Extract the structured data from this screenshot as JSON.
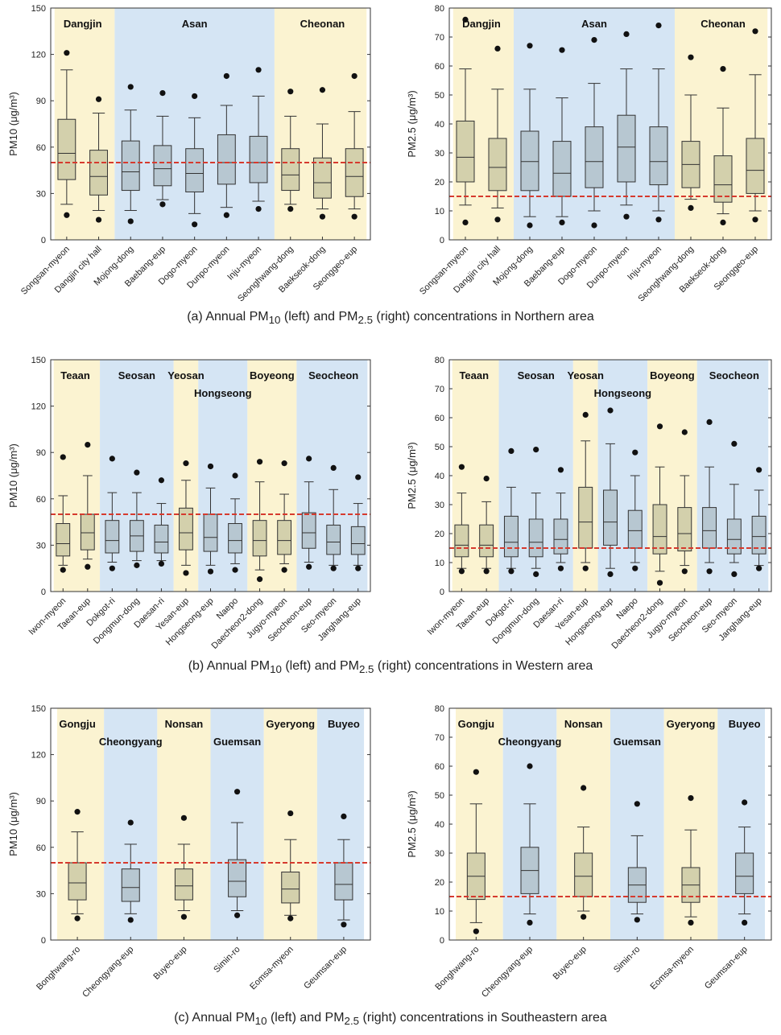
{
  "colors": {
    "yellow": "#fbf3d1",
    "blue": "#d5e5f4",
    "yellow_box": "#d3d0ac",
    "blue_box": "#b7c7d1",
    "line": "#d63a2e"
  },
  "captions": [
    {
      "prefix": "(a) Annual PM",
      "s1": "10",
      "mid": " (left) and PM",
      "s2": "2.5",
      "suffix": " (right) concentrations in Northern area"
    },
    {
      "prefix": "(b) Annual PM",
      "s1": "10",
      "mid": " (left) and PM",
      "s2": "2.5",
      "suffix": " (right) concentrations in Western area"
    },
    {
      "prefix": "(c) Annual PM",
      "s1": "10",
      "mid": " (left) and PM",
      "s2": "2.5",
      "suffix": " (right) concentrations in Southeastern area"
    }
  ],
  "chart_data": [
    {
      "type": "box",
      "pollutant": "PM10",
      "ylabel": "PM10 (μg/m³)",
      "ylim": [
        0,
        150
      ],
      "yticks": [
        0,
        30,
        60,
        90,
        120,
        150
      ],
      "standard_line": 50,
      "regions": [
        {
          "name": "Dangjin",
          "color": "yellow",
          "from": 0,
          "to": 1
        },
        {
          "name": "Asan",
          "color": "blue",
          "from": 2,
          "to": 6
        },
        {
          "name": "Cheonan",
          "color": "yellow",
          "from": 7,
          "to": 9
        }
      ],
      "categories": [
        "Songsan-myeon",
        "Dangjin city hall",
        "Mojong-dong",
        "Baebang-eup",
        "Dogo-myeon",
        "Dunpo-myeon",
        "Inju-myeon",
        "Seonghwang-dong",
        "Baekseok-dong",
        "Seonggeo-eup"
      ],
      "boxes": [
        {
          "min": 23,
          "q1": 39,
          "med": 56,
          "q3": 78,
          "max": 110,
          "out": [
            121,
            16
          ]
        },
        {
          "min": 19,
          "q1": 29,
          "med": 41,
          "q3": 58,
          "max": 82,
          "out": [
            91,
            13
          ]
        },
        {
          "min": 19,
          "q1": 32,
          "med": 44,
          "q3": 64,
          "max": 84,
          "out": [
            99,
            12
          ]
        },
        {
          "min": 26,
          "q1": 35,
          "med": 46,
          "q3": 61,
          "max": 80,
          "out": [
            95,
            23
          ]
        },
        {
          "min": 17,
          "q1": 31,
          "med": 43,
          "q3": 59,
          "max": 79,
          "out": [
            93,
            10
          ]
        },
        {
          "min": 21,
          "q1": 36,
          "med": 50,
          "q3": 68,
          "max": 87,
          "out": [
            106,
            16
          ]
        },
        {
          "min": 25,
          "q1": 37,
          "med": 50,
          "q3": 67,
          "max": 93,
          "out": [
            110,
            20
          ]
        },
        {
          "min": 23,
          "q1": 32,
          "med": 42,
          "q3": 59,
          "max": 80,
          "out": [
            96,
            20
          ]
        },
        {
          "min": 20,
          "q1": 27,
          "med": 37,
          "q3": 53,
          "max": 75,
          "out": [
            97,
            15
          ]
        },
        {
          "min": 20,
          "q1": 28,
          "med": 41,
          "q3": 59,
          "max": 83,
          "out": [
            106,
            15
          ]
        }
      ]
    },
    {
      "type": "box",
      "pollutant": "PM2.5",
      "ylabel": "PM2.5 (μg/m³)",
      "ylim": [
        0,
        80
      ],
      "yticks": [
        0,
        10,
        20,
        30,
        40,
        50,
        60,
        70,
        80
      ],
      "standard_line": 15,
      "regions": [
        {
          "name": "Dangjin",
          "color": "yellow",
          "from": 0,
          "to": 1
        },
        {
          "name": "Asan",
          "color": "blue",
          "from": 2,
          "to": 6
        },
        {
          "name": "Cheonan",
          "color": "yellow",
          "from": 7,
          "to": 9
        }
      ],
      "categories": [
        "Songsan-myeon",
        "Dangjin city hall",
        "Mojong-dong",
        "Baebang-eup",
        "Dogo-myeon",
        "Dunpo-myeon",
        "Inju-myeon",
        "Seonghwang-dong",
        "Baekseok-dong",
        "Seonggeo-eup"
      ],
      "boxes": [
        {
          "min": 12,
          "q1": 20,
          "med": 28.5,
          "q3": 41,
          "max": 59,
          "out": [
            76,
            6
          ]
        },
        {
          "min": 11,
          "q1": 17,
          "med": 25,
          "q3": 35,
          "max": 52,
          "out": [
            66,
            7
          ]
        },
        {
          "min": 8,
          "q1": 17,
          "med": 27,
          "q3": 37.5,
          "max": 52,
          "out": [
            67,
            5
          ]
        },
        {
          "min": 8,
          "q1": 15,
          "med": 23,
          "q3": 34,
          "max": 49,
          "out": [
            65.5,
            6
          ]
        },
        {
          "min": 10,
          "q1": 18,
          "med": 27,
          "q3": 39,
          "max": 54,
          "out": [
            69,
            5
          ]
        },
        {
          "min": 12,
          "q1": 20,
          "med": 32,
          "q3": 43,
          "max": 59,
          "out": [
            71,
            8
          ]
        },
        {
          "min": 10,
          "q1": 19,
          "med": 27,
          "q3": 39,
          "max": 59,
          "out": [
            74,
            7
          ]
        },
        {
          "min": 14,
          "q1": 18,
          "med": 26,
          "q3": 34,
          "max": 50,
          "out": [
            63,
            11
          ]
        },
        {
          "min": 9,
          "q1": 13,
          "med": 19,
          "q3": 29,
          "max": 45.5,
          "out": [
            59,
            6
          ]
        },
        {
          "min": 10,
          "q1": 16,
          "med": 24,
          "q3": 35,
          "max": 57,
          "out": [
            72,
            7
          ]
        }
      ]
    },
    {
      "type": "box",
      "pollutant": "PM10",
      "ylabel": "PM10 (μg/m³)",
      "ylim": [
        0,
        150
      ],
      "yticks": [
        0,
        30,
        60,
        90,
        120,
        150
      ],
      "standard_line": 50,
      "regions": [
        {
          "name": "Teaan",
          "color": "yellow",
          "from": 0,
          "to": 1
        },
        {
          "name": "Seosan",
          "color": "blue",
          "from": 2,
          "to": 4
        },
        {
          "name": "Yeosan",
          "color": "yellow",
          "from": 5,
          "to": 5
        },
        {
          "name": "Hongseong",
          "color": "blue",
          "from": 6,
          "to": 7,
          "low": true
        },
        {
          "name": "Boyeong",
          "color": "yellow",
          "from": 8,
          "to": 9
        },
        {
          "name": "Seocheon",
          "color": "blue",
          "from": 10,
          "to": 12
        }
      ],
      "categories": [
        "Iwon-myeon",
        "Taean-eup",
        "Dokgot-ri",
        "Dongmun-dong",
        "Daesan-ri",
        "Yesan-eup",
        "Hongseong-eup",
        "Naepo",
        "Daecheon2-dong",
        "Jugyo-myeon",
        "Seocheon-eup",
        "Seo-myeon",
        "Janghang-eup"
      ],
      "boxes": [
        {
          "min": 17,
          "q1": 23,
          "med": 31,
          "q3": 44,
          "max": 62,
          "out": [
            87,
            14
          ]
        },
        {
          "min": 21,
          "q1": 27,
          "med": 38,
          "q3": 50,
          "max": 75,
          "out": [
            95,
            16
          ]
        },
        {
          "min": 19,
          "q1": 25,
          "med": 33,
          "q3": 46,
          "max": 64,
          "out": [
            86,
            15
          ]
        },
        {
          "min": 20,
          "q1": 26,
          "med": 36,
          "q3": 46,
          "max": 64,
          "out": [
            77,
            17
          ]
        },
        {
          "min": 20,
          "q1": 25,
          "med": 32,
          "q3": 43,
          "max": 57,
          "out": [
            72,
            18
          ]
        },
        {
          "min": 17,
          "q1": 27,
          "med": 38,
          "q3": 54,
          "max": 72,
          "out": [
            83,
            12
          ]
        },
        {
          "min": 17,
          "q1": 26,
          "med": 35,
          "q3": 50,
          "max": 67,
          "out": [
            81,
            13
          ]
        },
        {
          "min": 18,
          "q1": 25,
          "med": 33,
          "q3": 44,
          "max": 60,
          "out": [
            75,
            14
          ]
        },
        {
          "min": 14,
          "q1": 23,
          "med": 33,
          "q3": 46,
          "max": 71,
          "out": [
            84,
            8
          ]
        },
        {
          "min": 18,
          "q1": 24,
          "med": 33,
          "q3": 46,
          "max": 63,
          "out": [
            83,
            14
          ]
        },
        {
          "min": 19,
          "q1": 28,
          "med": 38,
          "q3": 51,
          "max": 71,
          "out": [
            86,
            16
          ]
        },
        {
          "min": 17,
          "q1": 24,
          "med": 32,
          "q3": 43,
          "max": 66,
          "out": [
            80,
            15
          ]
        },
        {
          "min": 17,
          "q1": 24,
          "med": 31,
          "q3": 42,
          "max": 57,
          "out": [
            74,
            15
          ]
        }
      ]
    },
    {
      "type": "box",
      "pollutant": "PM2.5",
      "ylabel": "PM2.5 (μg/m³)",
      "ylim": [
        0,
        80
      ],
      "yticks": [
        0,
        10,
        20,
        30,
        40,
        50,
        60,
        70,
        80
      ],
      "standard_line": 15,
      "regions": [
        {
          "name": "Teaan",
          "color": "yellow",
          "from": 0,
          "to": 1
        },
        {
          "name": "Seosan",
          "color": "blue",
          "from": 2,
          "to": 4
        },
        {
          "name": "Yeosan",
          "color": "yellow",
          "from": 5,
          "to": 5
        },
        {
          "name": "Hongseong",
          "color": "blue",
          "from": 6,
          "to": 7,
          "low": true
        },
        {
          "name": "Boyeong",
          "color": "yellow",
          "from": 8,
          "to": 9
        },
        {
          "name": "Seocheon",
          "color": "blue",
          "from": 10,
          "to": 12
        }
      ],
      "categories": [
        "Iwon-myeon",
        "Taean-eup",
        "Dokgot-ri",
        "Dongmun-dong",
        "Daesan-ri",
        "Yesan-eup",
        "Hongseong-eup",
        "Naepo",
        "Daecheon2-dong",
        "Jugyo-myeon",
        "Seocheon-eup",
        "Seo-myeon",
        "Janghang-eup"
      ],
      "boxes": [
        {
          "min": 8,
          "q1": 12,
          "med": 16,
          "q3": 23,
          "max": 34,
          "out": [
            43,
            7
          ]
        },
        {
          "min": 8,
          "q1": 12,
          "med": 16,
          "q3": 23,
          "max": 31,
          "out": [
            39,
            7
          ]
        },
        {
          "min": 8,
          "q1": 12,
          "med": 17,
          "q3": 26,
          "max": 36,
          "out": [
            48.5,
            7
          ]
        },
        {
          "min": 8,
          "q1": 12,
          "med": 17,
          "q3": 25,
          "max": 34,
          "out": [
            49,
            6
          ]
        },
        {
          "min": 10,
          "q1": 13,
          "med": 18,
          "q3": 25,
          "max": 34,
          "out": [
            42,
            8
          ]
        },
        {
          "min": 10,
          "q1": 15,
          "med": 24,
          "q3": 36,
          "max": 52,
          "out": [
            61,
            8
          ]
        },
        {
          "min": 8,
          "q1": 16,
          "med": 24,
          "q3": 35,
          "max": 51,
          "out": [
            62.5,
            6
          ]
        },
        {
          "min": 10,
          "q1": 15,
          "med": 21,
          "q3": 28,
          "max": 40,
          "out": [
            48,
            8
          ]
        },
        {
          "min": 7,
          "q1": 13,
          "med": 19,
          "q3": 30,
          "max": 43,
          "out": [
            57,
            3
          ]
        },
        {
          "min": 9,
          "q1": 14,
          "med": 20,
          "q3": 29,
          "max": 40,
          "out": [
            55,
            7
          ]
        },
        {
          "min": 10,
          "q1": 15,
          "med": 21,
          "q3": 29,
          "max": 43,
          "out": [
            58.5,
            7
          ]
        },
        {
          "min": 10,
          "q1": 13,
          "med": 18,
          "q3": 25,
          "max": 37,
          "out": [
            51,
            6
          ]
        },
        {
          "min": 9,
          "q1": 13,
          "med": 19,
          "q3": 26,
          "max": 35,
          "out": [
            42,
            8
          ]
        }
      ]
    },
    {
      "type": "box",
      "pollutant": "PM10",
      "ylabel": "PM10 (μg/m³)",
      "ylim": [
        0,
        150
      ],
      "yticks": [
        0,
        30,
        60,
        90,
        120,
        150
      ],
      "standard_line": 50,
      "regions": [
        {
          "name": "Gongju",
          "color": "yellow",
          "from": 0,
          "to": 0
        },
        {
          "name": "Cheongyang",
          "color": "blue",
          "from": 1,
          "to": 1,
          "low": true
        },
        {
          "name": "Nonsan",
          "color": "yellow",
          "from": 2,
          "to": 2
        },
        {
          "name": "Guemsan",
          "color": "blue",
          "from": 3,
          "to": 3,
          "low": true
        },
        {
          "name": "Gyeryong",
          "color": "yellow",
          "from": 4,
          "to": 4
        },
        {
          "name": "Buyeo",
          "color": "blue",
          "from": 5,
          "to": 5
        }
      ],
      "categories": [
        "Bonghwang-ro",
        "Cheongyang-eup",
        "Buyeo-eup",
        "Simin-ro",
        "Eomsa-myeon",
        "Geumsan-eup"
      ],
      "boxes": [
        {
          "min": 17,
          "q1": 26,
          "med": 37,
          "q3": 50,
          "max": 70,
          "out": [
            83,
            14
          ]
        },
        {
          "min": 17,
          "q1": 25,
          "med": 34,
          "q3": 46,
          "max": 62,
          "out": [
            76,
            13
          ]
        },
        {
          "min": 19,
          "q1": 26,
          "med": 35,
          "q3": 46,
          "max": 62,
          "out": [
            79,
            15
          ]
        },
        {
          "min": 19,
          "q1": 28,
          "med": 38,
          "q3": 52,
          "max": 76,
          "out": [
            96,
            16
          ]
        },
        {
          "min": 16,
          "q1": 24,
          "med": 33,
          "q3": 44,
          "max": 65,
          "out": [
            82,
            14
          ]
        },
        {
          "min": 13,
          "q1": 26,
          "med": 36,
          "q3": 50,
          "max": 65,
          "out": [
            80,
            10
          ]
        }
      ]
    },
    {
      "type": "box",
      "pollutant": "PM2.5",
      "ylabel": "PM2.5 (μg/m³)",
      "ylim": [
        0,
        80
      ],
      "yticks": [
        0,
        10,
        20,
        30,
        40,
        50,
        60,
        70,
        80
      ],
      "standard_line": 15,
      "regions": [
        {
          "name": "Gongju",
          "color": "yellow",
          "from": 0,
          "to": 0
        },
        {
          "name": "Cheongyang",
          "color": "blue",
          "from": 1,
          "to": 1,
          "low": true
        },
        {
          "name": "Nonsan",
          "color": "yellow",
          "from": 2,
          "to": 2
        },
        {
          "name": "Guemsan",
          "color": "blue",
          "from": 3,
          "to": 3,
          "low": true
        },
        {
          "name": "Gyeryong",
          "color": "yellow",
          "from": 4,
          "to": 4
        },
        {
          "name": "Buyeo",
          "color": "blue",
          "from": 5,
          "to": 5
        }
      ],
      "categories": [
        "Bonghwang-ro",
        "Cheongyang-eup",
        "Buyeo-eup",
        "Simin-ro",
        "Eomsa-myeon",
        "Geumsan-eup"
      ],
      "boxes": [
        {
          "min": 6,
          "q1": 14,
          "med": 22,
          "q3": 30,
          "max": 47,
          "out": [
            58,
            3
          ]
        },
        {
          "min": 9,
          "q1": 16,
          "med": 24,
          "q3": 32,
          "max": 47,
          "out": [
            60,
            6
          ]
        },
        {
          "min": 10,
          "q1": 15,
          "med": 22,
          "q3": 30,
          "max": 39,
          "out": [
            52.5,
            8
          ]
        },
        {
          "min": 9,
          "q1": 13,
          "med": 19,
          "q3": 25,
          "max": 36,
          "out": [
            47,
            7
          ]
        },
        {
          "min": 8,
          "q1": 13,
          "med": 19,
          "q3": 25,
          "max": 38,
          "out": [
            49,
            6
          ]
        },
        {
          "min": 9,
          "q1": 16,
          "med": 22,
          "q3": 30,
          "max": 39,
          "out": [
            47.5,
            6
          ]
        }
      ]
    }
  ]
}
